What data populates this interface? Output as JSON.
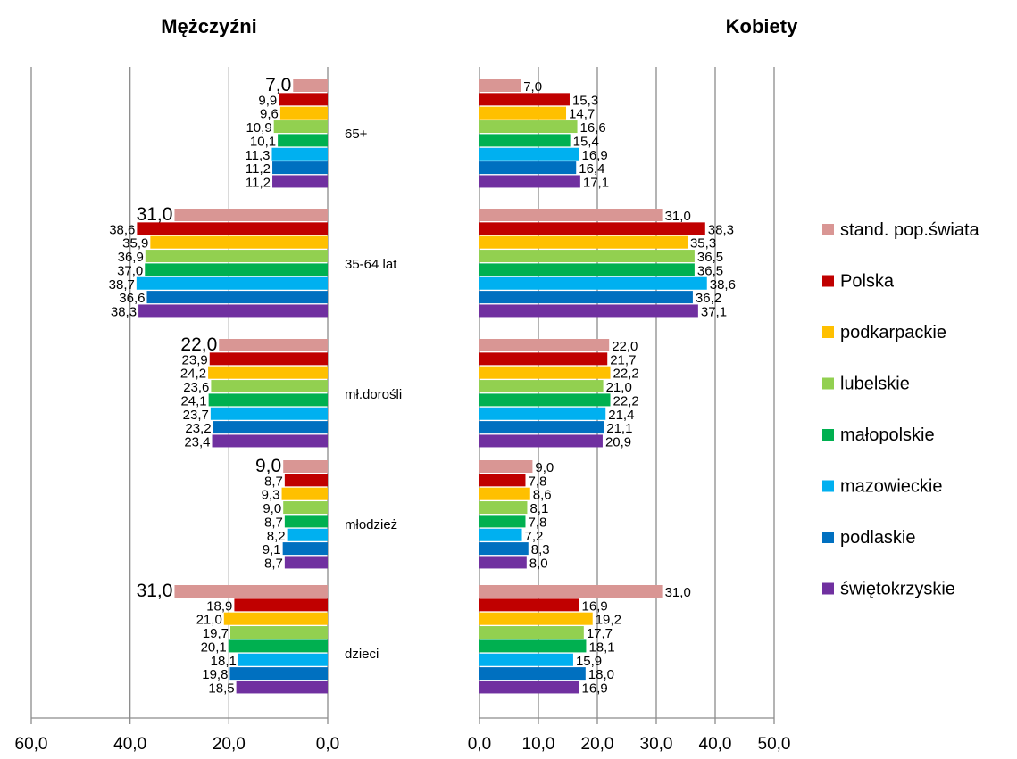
{
  "chart_data": {
    "type": "bar",
    "orientation": "horizontal",
    "categories": [
      "65+",
      "35-64 lat",
      "mł.dorośli",
      "młodzież",
      "dzieci"
    ],
    "series_names": [
      "stand. pop.świata",
      "Polska",
      "podkarpackie",
      "lubelskie",
      "małopolskie",
      "mazowieckie",
      "podlaskie",
      "świętokrzyskie"
    ],
    "series_colors": [
      "#d99694",
      "#c00000",
      "#ffc000",
      "#92d050",
      "#00b050",
      "#00b0f0",
      "#0070c0",
      "#7030a0"
    ],
    "panels": [
      {
        "title": "Mężczyźni",
        "direction": "reversed",
        "xlim": [
          0,
          60
        ],
        "ticks": [
          "60,0",
          "40,0",
          "20,0",
          "0,0"
        ],
        "values": [
          [
            7.0,
            9.9,
            9.6,
            10.9,
            10.1,
            11.3,
            11.2,
            11.2
          ],
          [
            31.0,
            38.6,
            35.9,
            36.9,
            37.0,
            38.7,
            36.6,
            38.3
          ],
          [
            22.0,
            23.9,
            24.2,
            23.6,
            24.1,
            23.7,
            23.2,
            23.4
          ],
          [
            9.0,
            8.7,
            9.3,
            9.0,
            8.7,
            8.2,
            9.1,
            8.7
          ],
          [
            31.0,
            18.9,
            21.0,
            19.7,
            20.1,
            18.1,
            19.8,
            18.5
          ]
        ],
        "labels": [
          [
            "7,0",
            "9,9",
            "9,6",
            "10,9",
            "10,1",
            "11,3",
            "11,2",
            "11,2"
          ],
          [
            "31,0",
            "38,6",
            "35,9",
            "36,9",
            "37,0",
            "38,7",
            "36,6",
            "38,3"
          ],
          [
            "22,0",
            "23,9",
            "24,2",
            "23,6",
            "24,1",
            "23,7",
            "23,2",
            "23,4"
          ],
          [
            "9,0",
            "8,7",
            "9,3",
            "9,0",
            "8,7",
            "8,2",
            "9,1",
            "8,7"
          ],
          [
            "31,0",
            "18,9",
            "21,0",
            "19,7",
            "20,1",
            "18,1",
            "19,8",
            "18,5"
          ]
        ]
      },
      {
        "title": "Kobiety",
        "direction": "normal",
        "xlim": [
          0,
          50
        ],
        "ticks": [
          "0,0",
          "10,0",
          "20,0",
          "30,0",
          "40,0",
          "50,0"
        ],
        "values": [
          [
            7.0,
            15.3,
            14.7,
            16.6,
            15.4,
            16.9,
            16.4,
            17.1
          ],
          [
            31.0,
            38.3,
            35.3,
            36.5,
            36.5,
            38.6,
            36.2,
            37.1
          ],
          [
            22.0,
            21.7,
            22.2,
            21.0,
            22.2,
            21.4,
            21.1,
            20.9
          ],
          [
            9.0,
            7.8,
            8.6,
            8.1,
            7.8,
            7.2,
            8.3,
            8.0
          ],
          [
            31.0,
            16.9,
            19.2,
            17.7,
            18.1,
            15.9,
            18.0,
            16.9
          ]
        ],
        "labels": [
          [
            "7,0",
            "15,3",
            "14,7",
            "16,6",
            "15,4",
            "16,9",
            "16,4",
            "17,1"
          ],
          [
            "31,0",
            "38,3",
            "35,3",
            "36,5",
            "36,5",
            "38,6",
            "36,2",
            "37,1"
          ],
          [
            "22,0",
            "21,7",
            "22,2",
            "21,0",
            "22,2",
            "21,4",
            "21,1",
            "20,9"
          ],
          [
            "9,0",
            "7,8",
            "8,6",
            "8,1",
            "7,8",
            "7,2",
            "8,3",
            "8,0"
          ],
          [
            "31,0",
            "16,9",
            "19,2",
            "17,7",
            "18,1",
            "15,9",
            "18,0",
            "16,9"
          ]
        ]
      }
    ],
    "grid": true,
    "legend_position": "right"
  }
}
